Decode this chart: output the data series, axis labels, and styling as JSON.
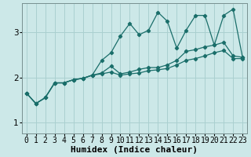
{
  "xlabel": "Humidex (Indice chaleur)",
  "bg_color": "#cce8e8",
  "grid_color": "#aad0d0",
  "line_color": "#1a6e6a",
  "xlim_left": -0.5,
  "xlim_right": 23.5,
  "ylim_bottom": 0.75,
  "ylim_top": 3.65,
  "yticks": [
    1,
    2,
    3
  ],
  "xticks": [
    0,
    1,
    2,
    3,
    4,
    5,
    6,
    7,
    8,
    9,
    10,
    11,
    12,
    13,
    14,
    15,
    16,
    17,
    18,
    19,
    20,
    21,
    22,
    23
  ],
  "series_upper_x": [
    0,
    1,
    2,
    3,
    4,
    5,
    6,
    7,
    8,
    9,
    10,
    11,
    12,
    13,
    14,
    15,
    16,
    17,
    18,
    19,
    20,
    21,
    22,
    23
  ],
  "series_upper_y": [
    1.65,
    1.42,
    1.55,
    1.88,
    1.88,
    1.95,
    1.98,
    2.05,
    2.38,
    2.55,
    2.92,
    3.2,
    2.95,
    3.05,
    3.45,
    3.25,
    2.65,
    3.05,
    3.38,
    3.38,
    2.72,
    3.38,
    3.52,
    2.45
  ],
  "series_mid_x": [
    0,
    1,
    2,
    3,
    4,
    5,
    6,
    7,
    8,
    9,
    10,
    11,
    12,
    13,
    14,
    15,
    16,
    17,
    18,
    19,
    20,
    21,
    22,
    23
  ],
  "series_mid_y": [
    1.65,
    1.42,
    1.55,
    1.88,
    1.88,
    1.95,
    1.98,
    2.05,
    2.1,
    2.25,
    2.08,
    2.12,
    2.18,
    2.22,
    2.22,
    2.28,
    2.38,
    2.58,
    2.62,
    2.68,
    2.72,
    2.78,
    2.48,
    2.45
  ],
  "series_lower_x": [
    0,
    1,
    2,
    3,
    4,
    5,
    6,
    7,
    8,
    9,
    10,
    11,
    12,
    13,
    14,
    15,
    16,
    17,
    18,
    19,
    20,
    21,
    22,
    23
  ],
  "series_lower_y": [
    1.65,
    1.42,
    1.55,
    1.88,
    1.88,
    1.95,
    1.98,
    2.05,
    2.08,
    2.12,
    2.05,
    2.08,
    2.1,
    2.15,
    2.17,
    2.2,
    2.28,
    2.38,
    2.42,
    2.48,
    2.55,
    2.6,
    2.42,
    2.42
  ],
  "xlabel_fontsize": 8,
  "tick_fontsize": 7
}
